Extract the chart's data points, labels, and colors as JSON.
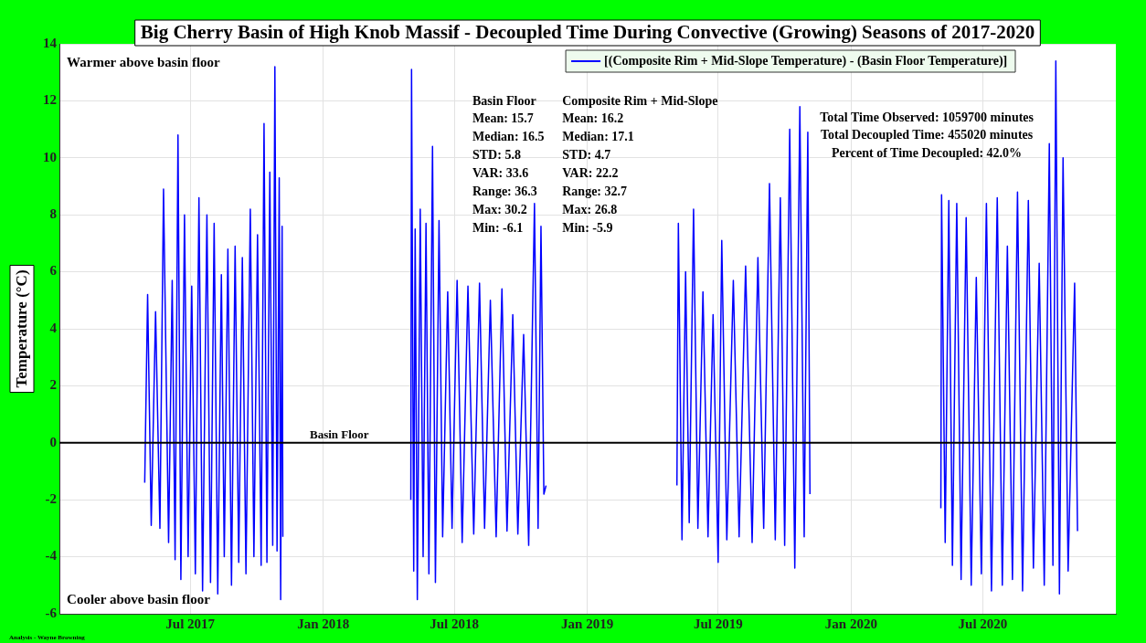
{
  "chart_data": {
    "type": "line",
    "title": "Big Cherry Basin of High Knob Massif - Decoupled Time During Convective (Growing) Seasons of 2017-2020",
    "ylabel": "Temperature (°C)",
    "xlim": [
      "2017-01-01",
      "2021-01-01"
    ],
    "xticks": [
      {
        "value": "2017-07-01",
        "label": "Jul 2017"
      },
      {
        "value": "2018-01-01",
        "label": "Jan 2018"
      },
      {
        "value": "2018-07-01",
        "label": "Jul 2018"
      },
      {
        "value": "2019-01-01",
        "label": "Jan 2019"
      },
      {
        "value": "2019-07-01",
        "label": "Jul 2019"
      },
      {
        "value": "2020-01-01",
        "label": "Jan 2020"
      },
      {
        "value": "2020-07-01",
        "label": "Jul 2020"
      }
    ],
    "ylim": [
      -6,
      14
    ],
    "yticks": [
      -6,
      -4,
      -2,
      0,
      2,
      4,
      6,
      8,
      10,
      12,
      14
    ],
    "grid": true,
    "legend": "top right",
    "marker": "none",
    "line_style": "solid",
    "series": [
      {
        "name": "[(Composite Rim + Mid-Slope Temperature) - (Basin Floor Temperature)]",
        "color": "#0000ff",
        "x": [
          "2017-04-29",
          "2017-05-03",
          "2017-05-08",
          "2017-05-14",
          "2017-05-20",
          "2017-05-25",
          "2017-06-01",
          "2017-06-06",
          "2017-06-10",
          "2017-06-14",
          "2017-06-18",
          "2017-06-23",
          "2017-06-28",
          "2017-07-03",
          "2017-07-08",
          "2017-07-13",
          "2017-07-18",
          "2017-07-24",
          "2017-07-29",
          "2017-08-03",
          "2017-08-08",
          "2017-08-13",
          "2017-08-17",
          "2017-08-22",
          "2017-08-27",
          "2017-09-01",
          "2017-09-06",
          "2017-09-11",
          "2017-09-16",
          "2017-09-22",
          "2017-09-27",
          "2017-10-02",
          "2017-10-07",
          "2017-10-11",
          "2017-10-15",
          "2017-10-19",
          "2017-10-23",
          "2017-10-26",
          "2017-10-29",
          "2017-11-01",
          "2017-11-03",
          "2017-11-05",
          "2017-11-06",
          "2018-02-01",
          "2018-05-02",
          "2018-05-03",
          "2018-05-06",
          "2018-05-08",
          "2018-05-11",
          "2018-05-15",
          "2018-05-19",
          "2018-05-23",
          "2018-05-27",
          "2018-06-01",
          "2018-06-05",
          "2018-06-10",
          "2018-06-15",
          "2018-06-22",
          "2018-06-28",
          "2018-07-05",
          "2018-07-12",
          "2018-07-20",
          "2018-07-28",
          "2018-08-05",
          "2018-08-12",
          "2018-08-20",
          "2018-08-28",
          "2018-09-05",
          "2018-09-12",
          "2018-09-20",
          "2018-09-27",
          "2018-10-05",
          "2018-10-12",
          "2018-10-20",
          "2018-10-25",
          "2018-10-29",
          "2018-11-02",
          "2018-11-05",
          "2019-02-01",
          "2019-05-05",
          "2019-05-07",
          "2019-05-12",
          "2019-05-17",
          "2019-05-22",
          "2019-05-28",
          "2019-06-03",
          "2019-06-10",
          "2019-06-17",
          "2019-06-24",
          "2019-07-01",
          "2019-07-06",
          "2019-07-13",
          "2019-07-22",
          "2019-07-30",
          "2019-08-08",
          "2019-08-17",
          "2019-08-25",
          "2019-09-02",
          "2019-09-10",
          "2019-09-18",
          "2019-09-25",
          "2019-10-01",
          "2019-10-08",
          "2019-10-15",
          "2019-10-22",
          "2019-10-28",
          "2019-11-02",
          "2019-11-05",
          "2020-02-01",
          "2020-05-04",
          "2020-05-05",
          "2020-05-10",
          "2020-05-15",
          "2020-05-20",
          "2020-05-26",
          "2020-06-01",
          "2020-06-08",
          "2020-06-15",
          "2020-06-22",
          "2020-06-29",
          "2020-07-06",
          "2020-07-13",
          "2020-07-21",
          "2020-07-28",
          "2020-08-04",
          "2020-08-11",
          "2020-08-18",
          "2020-08-25",
          "2020-09-02",
          "2020-09-09",
          "2020-09-17",
          "2020-09-24",
          "2020-10-01",
          "2020-10-06",
          "2020-10-10",
          "2020-10-15",
          "2020-10-20",
          "2020-10-27",
          "2020-11-05",
          "2020-11-09"
        ],
        "values": [
          -1.4,
          5.2,
          -2.9,
          4.6,
          -3.0,
          8.9,
          -3.5,
          5.7,
          -4.1,
          10.8,
          -4.8,
          8.0,
          -4.0,
          5.5,
          -4.6,
          8.6,
          -5.2,
          8.0,
          -4.9,
          7.7,
          -5.3,
          5.9,
          -4.0,
          6.8,
          -5.0,
          6.9,
          -4.2,
          6.5,
          -4.6,
          8.2,
          -4.0,
          7.3,
          -4.3,
          11.2,
          -4.2,
          9.5,
          -3.6,
          13.2,
          -3.8,
          9.3,
          -5.5,
          7.6,
          -3.3,
          null,
          -2.0,
          13.1,
          -4.5,
          7.5,
          -5.5,
          8.2,
          -4.0,
          7.7,
          -4.6,
          10.4,
          -4.9,
          7.8,
          -3.3,
          5.3,
          -3.0,
          5.7,
          -3.5,
          5.5,
          -3.2,
          5.6,
          -3.0,
          5.0,
          -3.3,
          5.4,
          -3.1,
          4.5,
          -3.2,
          3.8,
          -3.6,
          8.4,
          -3.0,
          7.6,
          -1.8,
          -1.5,
          null,
          -1.5,
          7.7,
          -3.4,
          6.0,
          -2.8,
          8.2,
          -3.0,
          5.3,
          -3.3,
          4.5,
          -4.2,
          7.1,
          -3.4,
          5.7,
          -3.3,
          6.2,
          -3.5,
          6.5,
          -3.0,
          9.1,
          -3.4,
          8.6,
          -3.6,
          11.0,
          -4.4,
          11.8,
          -3.3,
          10.9,
          -1.8,
          null,
          -2.3,
          8.7,
          -3.5,
          8.5,
          -4.3,
          8.4,
          -4.8,
          7.9,
          -5.0,
          5.8,
          -4.6,
          8.4,
          -5.2,
          8.6,
          -5.0,
          6.9,
          -4.8,
          8.8,
          -5.2,
          8.5,
          -4.4,
          6.3,
          -5.0,
          10.5,
          -4.3,
          13.4,
          -5.3,
          10.0,
          -4.5,
          5.6,
          -3.1
        ]
      }
    ],
    "ref_lines": [
      {
        "axis": "y",
        "value": 0,
        "label": "Basin Floor",
        "color": "#000000"
      }
    ],
    "annotations": [
      "Warmer above basin floor",
      "Cooler above basin floor",
      "Basin Floor\nMean: 15.7\nMedian: 16.5\nSTD: 5.8\nVAR: 33.6\nRange: 36.3\nMax: 30.2\nMin: -6.1",
      "Composite Rim + Mid-Slope\nMean: 16.2\nMedian: 17.1\nSTD: 4.7\nVAR: 22.2\nRange: 32.7\nMax: 26.8\nMin: -5.9",
      "Total Time Observed: 1059700 minutes\nTotal Decoupled Time: 455020 minutes\nPercent of Time Decoupled: 42.0%",
      "Analysis - Wayne Browning"
    ]
  }
}
